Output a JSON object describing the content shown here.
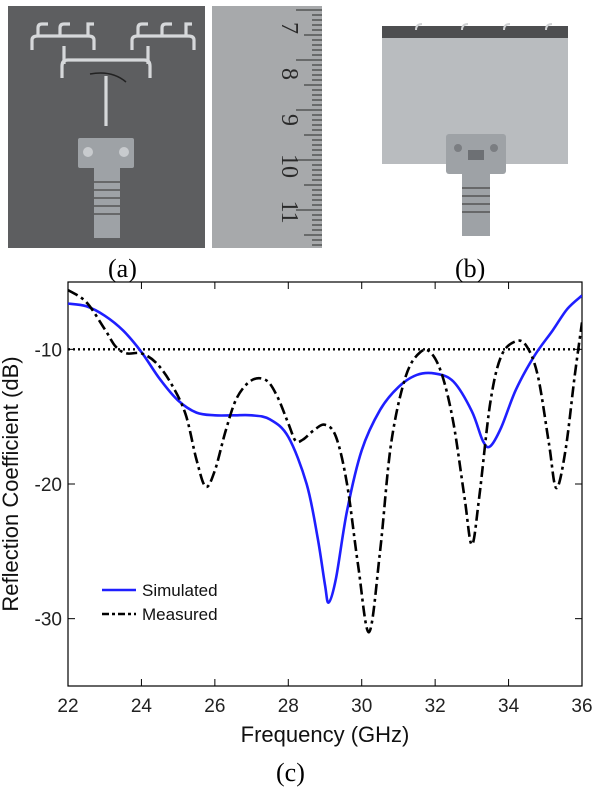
{
  "panels": {
    "a_label": "(a)",
    "b_label": "(b)",
    "c_label": "(c)"
  },
  "photo_colors": {
    "board": "#5d5e60",
    "board_edge": "#4a4b4d",
    "trace": "#d6d8da",
    "ruler": "#a7a9ab",
    "ruler_marks": "#2a2a2a",
    "plate": "#b9bcbf",
    "connector": "#9ea2a6"
  },
  "ruler": {
    "numbers": [
      "7",
      "8",
      "9",
      "10",
      "11",
      "1"
    ]
  },
  "chart_data": {
    "type": "line",
    "xlabel": "Frequency (GHz)",
    "ylabel": "Reflection Coefficient (dB)",
    "xlim": [
      22,
      36
    ],
    "ylim": [
      -35,
      -5
    ],
    "xticks": [
      22,
      24,
      26,
      28,
      30,
      32,
      34,
      36
    ],
    "yticks": [
      -10,
      -20,
      -30
    ],
    "grid": false,
    "legend_position": "bottom-left",
    "reference_line": {
      "y": -10,
      "style": "dotted",
      "color": "#000000"
    },
    "series": [
      {
        "name": "Simulated",
        "color": "#1f1fff",
        "style": "solid",
        "points": [
          [
            22,
            -6.6
          ],
          [
            22.5,
            -6.8
          ],
          [
            23,
            -7.5
          ],
          [
            23.5,
            -8.6
          ],
          [
            24,
            -10.2
          ],
          [
            24.5,
            -12.2
          ],
          [
            25,
            -13.8
          ],
          [
            25.5,
            -14.7
          ],
          [
            26,
            -14.9
          ],
          [
            26.5,
            -14.9
          ],
          [
            27,
            -14.9
          ],
          [
            27.5,
            -15.2
          ],
          [
            28,
            -16.5
          ],
          [
            28.5,
            -20
          ],
          [
            28.8,
            -24
          ],
          [
            29,
            -27.5
          ],
          [
            29.1,
            -28.8
          ],
          [
            29.3,
            -27
          ],
          [
            29.6,
            -22
          ],
          [
            30,
            -17.5
          ],
          [
            30.5,
            -14.5
          ],
          [
            31,
            -12.8
          ],
          [
            31.5,
            -11.9
          ],
          [
            32,
            -11.8
          ],
          [
            32.5,
            -12.4
          ],
          [
            33,
            -14.6
          ],
          [
            33.3,
            -16.8
          ],
          [
            33.5,
            -17.2
          ],
          [
            33.8,
            -15.8
          ],
          [
            34.2,
            -13
          ],
          [
            34.7,
            -10.5
          ],
          [
            35.2,
            -8.6
          ],
          [
            35.6,
            -7
          ],
          [
            36,
            -6
          ]
        ]
      },
      {
        "name": "Measured",
        "color": "#000000",
        "style": "dashdot",
        "points": [
          [
            22,
            -5.6
          ],
          [
            22.5,
            -6.5
          ],
          [
            23,
            -8.5
          ],
          [
            23.3,
            -9.8
          ],
          [
            23.6,
            -10.3
          ],
          [
            24,
            -10.3
          ],
          [
            24.4,
            -11
          ],
          [
            24.8,
            -12.5
          ],
          [
            25.2,
            -14.8
          ],
          [
            25.5,
            -18.2
          ],
          [
            25.75,
            -20.2
          ],
          [
            26,
            -19
          ],
          [
            26.3,
            -16
          ],
          [
            26.6,
            -13.6
          ],
          [
            27,
            -12.3
          ],
          [
            27.4,
            -12.3
          ],
          [
            27.7,
            -13.5
          ],
          [
            28,
            -15.5
          ],
          [
            28.2,
            -16.8
          ],
          [
            28.4,
            -16.7
          ],
          [
            28.7,
            -16
          ],
          [
            29,
            -15.6
          ],
          [
            29.3,
            -16.5
          ],
          [
            29.6,
            -20
          ],
          [
            29.9,
            -26
          ],
          [
            30.2,
            -31
          ],
          [
            30.5,
            -25
          ],
          [
            30.8,
            -17
          ],
          [
            31.2,
            -12
          ],
          [
            31.6,
            -10.2
          ],
          [
            31.9,
            -10.3
          ],
          [
            32.2,
            -12
          ],
          [
            32.5,
            -15.5
          ],
          [
            32.8,
            -21
          ],
          [
            33,
            -24.5
          ],
          [
            33.2,
            -21
          ],
          [
            33.5,
            -14
          ],
          [
            33.8,
            -10.5
          ],
          [
            34.2,
            -9.4
          ],
          [
            34.5,
            -9.8
          ],
          [
            34.8,
            -12
          ],
          [
            35.1,
            -17
          ],
          [
            35.3,
            -20.3
          ],
          [
            35.55,
            -17.5
          ],
          [
            35.8,
            -12
          ],
          [
            36,
            -8
          ]
        ]
      }
    ]
  }
}
